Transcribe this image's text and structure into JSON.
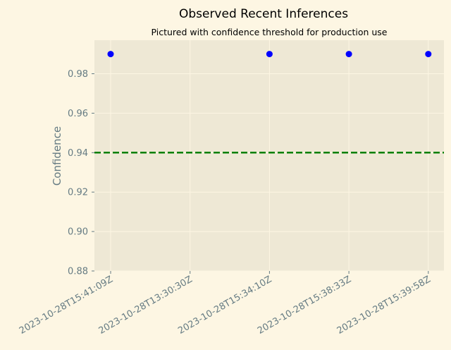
{
  "chart_data": {
    "type": "scatter",
    "title": "Observed Recent Inferences",
    "subtitle": "Pictured with confidence threshold for production use",
    "xlabel": "",
    "ylabel": "Confidence",
    "categories": [
      "2023-10-28T15:41:09Z",
      "2023-10-28T13:30:30Z",
      "2023-10-28T15:34:10Z",
      "2023-10-28T15:38:33Z",
      "2023-10-28T15:39:58Z"
    ],
    "points": [
      {
        "x": "2023-10-28T15:41:09Z",
        "y": 0.99
      },
      {
        "x": "2023-10-28T15:34:10Z",
        "y": 0.99
      },
      {
        "x": "2023-10-28T15:38:33Z",
        "y": 0.99
      },
      {
        "x": "2023-10-28T15:39:58Z",
        "y": 0.99
      }
    ],
    "threshold": 0.94,
    "ylim": [
      0.88,
      0.997
    ],
    "yticks": [
      "0.88",
      "0.90",
      "0.92",
      "0.94",
      "0.96",
      "0.98"
    ],
    "grid": true,
    "colors": {
      "background": "#fdf6e3",
      "plot_area": "#eee8d5",
      "grid": "#fdf6e3",
      "points": "#0000ff",
      "threshold": "#008000",
      "text": "#657b83"
    }
  }
}
